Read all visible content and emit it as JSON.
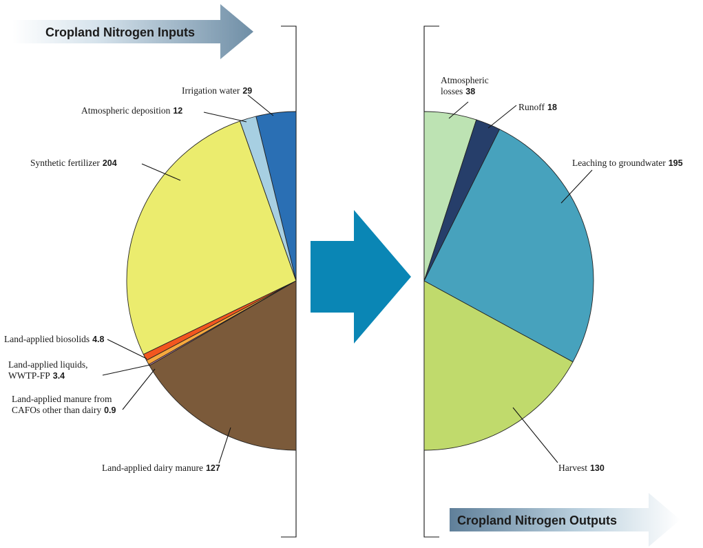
{
  "inputs_title": "Cropland Nitrogen Inputs",
  "outputs_title": "Cropland Nitrogen Outputs",
  "chart_data": [
    {
      "type": "pie",
      "title": "Cropland Nitrogen Inputs",
      "half": "left",
      "slices": [
        {
          "label": "Irrigation water",
          "value": 29,
          "value_text": "29",
          "color": "#2a6fb4"
        },
        {
          "label": "Atmospheric deposition",
          "value": 12,
          "value_text": "12",
          "color": "#a7cfe2"
        },
        {
          "label": "Synthetic fertilizer",
          "value": 204,
          "value_text": "204",
          "color": "#ebec6e"
        },
        {
          "label": "Land-applied biosolids",
          "value": 4.8,
          "value_text": "4.8",
          "color": "#f2561f"
        },
        {
          "label": "Land-applied liquids,",
          "label2": "WWTP-FP",
          "value": 3.4,
          "value_text": "3.4",
          "color": "#f6a83e"
        },
        {
          "label": "Land-applied manure from",
          "label2": "CAFOs other than dairy",
          "value": 0.9,
          "value_text": "0.9",
          "color": "#ec9fc6"
        },
        {
          "label": "Land-applied dairy manure",
          "value": 127,
          "value_text": "127",
          "color": "#7b5a3a"
        }
      ]
    },
    {
      "type": "pie",
      "title": "Cropland Nitrogen Outputs",
      "half": "right",
      "slices": [
        {
          "label": "Atmospheric",
          "label2": "losses",
          "value": 38,
          "value_text": "38",
          "color": "#bde3b3"
        },
        {
          "label": "Runoff",
          "value": 18,
          "value_text": "18",
          "color": "#263e6a"
        },
        {
          "label": "Leaching to groundwater",
          "value": 195,
          "value_text": "195",
          "color": "#47a2bd"
        },
        {
          "label": "Harvest",
          "value": 130,
          "value_text": "130",
          "color": "#c0da6c"
        }
      ]
    }
  ]
}
